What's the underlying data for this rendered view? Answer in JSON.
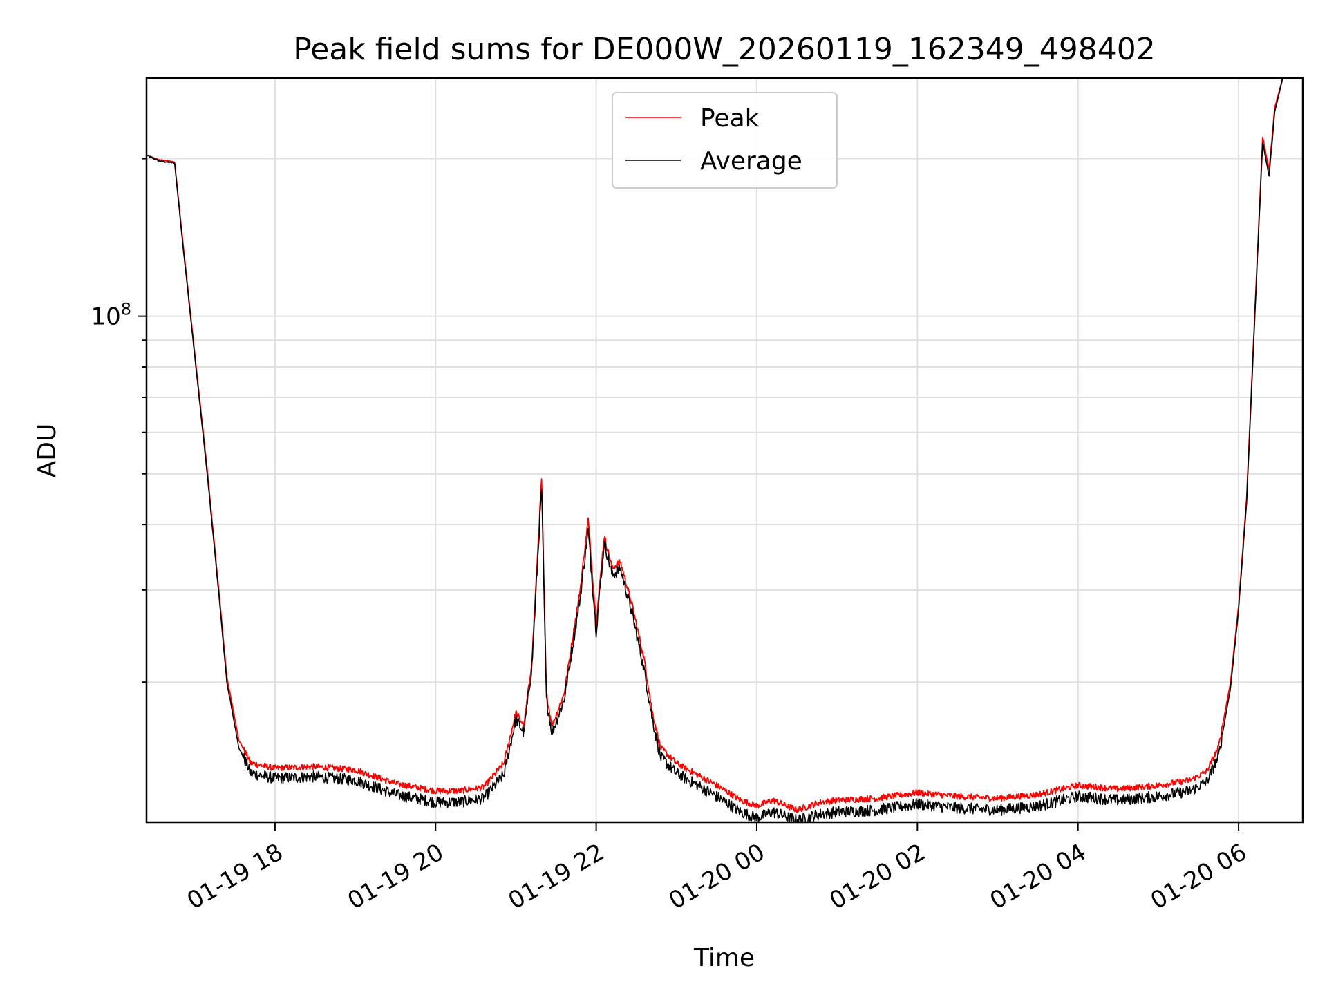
{
  "chart_data": {
    "type": "line",
    "title": "Peak field sums for DE000W_20260119_162349_498402",
    "xlabel": "Time",
    "ylabel": "ADU",
    "yscale": "log",
    "xlim": [
      16.4,
      30.8
    ],
    "ylim": [
      10800000,
      285000000
    ],
    "grid": true,
    "legend_position": "top-center",
    "y_major_ticks": [
      {
        "value": 100000000,
        "base": "10",
        "exponent": "8"
      }
    ],
    "y_minor_ticks": [
      20000000,
      30000000,
      40000000,
      50000000,
      60000000,
      70000000,
      80000000,
      90000000,
      200000000
    ],
    "x_ticks": [
      {
        "value": 18,
        "label": "01-19 18"
      },
      {
        "value": 20,
        "label": "01-19 20"
      },
      {
        "value": 22,
        "label": "01-19 22"
      },
      {
        "value": 24,
        "label": "01-20 00"
      },
      {
        "value": 26,
        "label": "01-20 02"
      },
      {
        "value": 28,
        "label": "01-20 04"
      },
      {
        "value": 30,
        "label": "01-20 06"
      }
    ],
    "series": [
      {
        "name": "Peak",
        "color": "#ff0000",
        "points": [
          [
            16.4,
            203000000
          ],
          [
            16.55,
            199000000
          ],
          [
            16.75,
            197000000
          ],
          [
            16.85,
            140000000
          ],
          [
            17.0,
            85000000
          ],
          [
            17.15,
            52000000
          ],
          [
            17.3,
            30000000
          ],
          [
            17.4,
            20500000
          ],
          [
            17.55,
            15500000
          ],
          [
            17.7,
            14000000
          ],
          [
            18.0,
            13700000
          ],
          [
            18.5,
            13800000
          ],
          [
            19.0,
            13600000
          ],
          [
            19.5,
            12800000
          ],
          [
            20.0,
            12400000
          ],
          [
            20.3,
            12400000
          ],
          [
            20.6,
            12600000
          ],
          [
            20.85,
            14000000
          ],
          [
            21.0,
            17500000
          ],
          [
            21.1,
            16500000
          ],
          [
            21.2,
            22000000
          ],
          [
            21.32,
            49000000
          ],
          [
            21.38,
            19000000
          ],
          [
            21.45,
            16500000
          ],
          [
            21.6,
            19000000
          ],
          [
            21.8,
            30000000
          ],
          [
            21.9,
            41000000
          ],
          [
            22.0,
            26000000
          ],
          [
            22.1,
            38000000
          ],
          [
            22.2,
            33000000
          ],
          [
            22.3,
            34000000
          ],
          [
            22.45,
            28000000
          ],
          [
            22.6,
            22000000
          ],
          [
            22.7,
            17500000
          ],
          [
            22.8,
            15000000
          ],
          [
            23.0,
            14000000
          ],
          [
            23.5,
            12700000
          ],
          [
            23.8,
            11900000
          ],
          [
            24.0,
            11600000
          ],
          [
            24.2,
            11900000
          ],
          [
            24.5,
            11400000
          ],
          [
            24.8,
            11800000
          ],
          [
            25.0,
            11900000
          ],
          [
            25.5,
            12000000
          ],
          [
            26.0,
            12300000
          ],
          [
            26.5,
            12100000
          ],
          [
            27.0,
            12000000
          ],
          [
            27.5,
            12200000
          ],
          [
            28.0,
            12700000
          ],
          [
            28.5,
            12500000
          ],
          [
            29.0,
            12700000
          ],
          [
            29.4,
            13000000
          ],
          [
            29.6,
            13500000
          ],
          [
            29.75,
            15000000
          ],
          [
            29.9,
            20000000
          ],
          [
            30.0,
            28000000
          ],
          [
            30.1,
            45000000
          ],
          [
            30.2,
            100000000
          ],
          [
            30.3,
            220000000
          ],
          [
            30.38,
            190000000
          ],
          [
            30.45,
            250000000
          ],
          [
            30.55,
            285000000
          ]
        ]
      },
      {
        "name": "Average",
        "color": "#000000",
        "points": [
          [
            16.4,
            203000000
          ],
          [
            16.55,
            198000000
          ],
          [
            16.75,
            196000000
          ],
          [
            16.85,
            138000000
          ],
          [
            17.0,
            84000000
          ],
          [
            17.15,
            51000000
          ],
          [
            17.3,
            29500000
          ],
          [
            17.4,
            20000000
          ],
          [
            17.55,
            15000000
          ],
          [
            17.7,
            13400000
          ],
          [
            18.0,
            13100000
          ],
          [
            18.5,
            13200000
          ],
          [
            19.0,
            13000000
          ],
          [
            19.5,
            12200000
          ],
          [
            20.0,
            11800000
          ],
          [
            20.3,
            11800000
          ],
          [
            20.6,
            12000000
          ],
          [
            20.85,
            13300000
          ],
          [
            21.0,
            17000000
          ],
          [
            21.1,
            16000000
          ],
          [
            21.2,
            21500000
          ],
          [
            21.32,
            47000000
          ],
          [
            21.38,
            18500000
          ],
          [
            21.45,
            16000000
          ],
          [
            21.6,
            18500000
          ],
          [
            21.8,
            29000000
          ],
          [
            21.9,
            39000000
          ],
          [
            22.0,
            25000000
          ],
          [
            22.1,
            37000000
          ],
          [
            22.2,
            32000000
          ],
          [
            22.3,
            33000000
          ],
          [
            22.45,
            27000000
          ],
          [
            22.6,
            21000000
          ],
          [
            22.7,
            17000000
          ],
          [
            22.8,
            14400000
          ],
          [
            23.0,
            13400000
          ],
          [
            23.5,
            12100000
          ],
          [
            23.8,
            11300000
          ],
          [
            24.0,
            11000000
          ],
          [
            24.2,
            11300000
          ],
          [
            24.5,
            10900000
          ],
          [
            24.8,
            11200000
          ],
          [
            25.0,
            11300000
          ],
          [
            25.5,
            11400000
          ],
          [
            26.0,
            11700000
          ],
          [
            26.5,
            11500000
          ],
          [
            27.0,
            11400000
          ],
          [
            27.5,
            11600000
          ],
          [
            28.0,
            12100000
          ],
          [
            28.5,
            11900000
          ],
          [
            29.0,
            12100000
          ],
          [
            29.4,
            12400000
          ],
          [
            29.6,
            12900000
          ],
          [
            29.75,
            14400000
          ],
          [
            29.9,
            19500000
          ],
          [
            30.0,
            27500000
          ],
          [
            30.1,
            44000000
          ],
          [
            30.2,
            98000000
          ],
          [
            30.3,
            215000000
          ],
          [
            30.38,
            185000000
          ],
          [
            30.45,
            245000000
          ],
          [
            30.55,
            285000000
          ]
        ]
      }
    ]
  }
}
